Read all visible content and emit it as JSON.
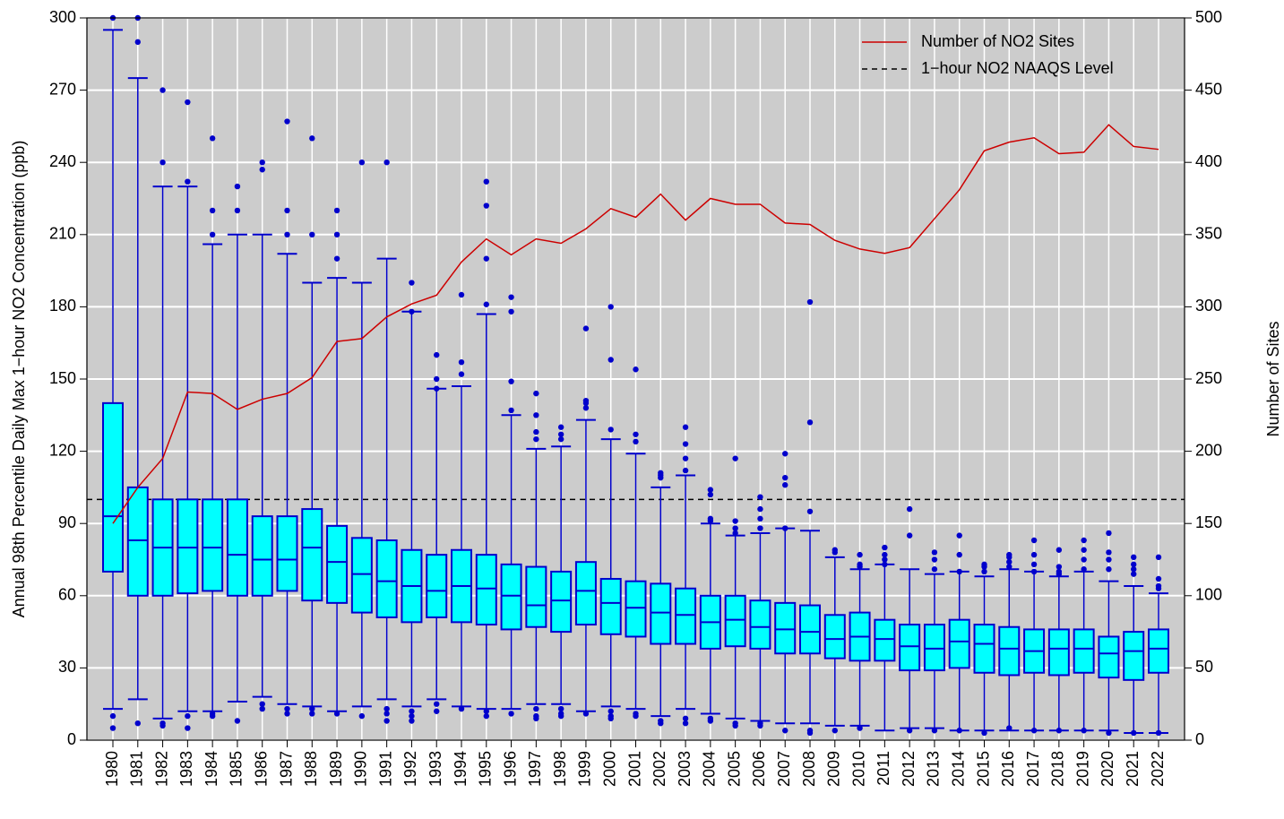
{
  "chart_data": {
    "type": "box",
    "y_label": "Annual 98th Percentile Daily Max 1−hour NO2 Concentration (ppb)",
    "y2_label": "Number of Sites",
    "categories": [
      "1980",
      "1981",
      "1982",
      "1983",
      "1984",
      "1985",
      "1986",
      "1987",
      "1988",
      "1989",
      "1990",
      "1991",
      "1992",
      "1993",
      "1994",
      "1995",
      "1996",
      "1997",
      "1998",
      "1999",
      "2000",
      "2001",
      "2002",
      "2003",
      "2004",
      "2005",
      "2006",
      "2007",
      "2008",
      "2009",
      "2010",
      "2011",
      "2012",
      "2013",
      "2014",
      "2015",
      "2016",
      "2017",
      "2018",
      "2019",
      "2020",
      "2021",
      "2022"
    ],
    "whisker_low": [
      13,
      17,
      9,
      12,
      12,
      16,
      18,
      15,
      14,
      12,
      14,
      17,
      14,
      17,
      14,
      13,
      13,
      15,
      15,
      12,
      14,
      13,
      10,
      13,
      11,
      9,
      8,
      7,
      7,
      6,
      6,
      4,
      5,
      5,
      4,
      4,
      4,
      4,
      4,
      4,
      4,
      3,
      3
    ],
    "q1": [
      70,
      60,
      60,
      61,
      62,
      60,
      60,
      62,
      58,
      57,
      53,
      51,
      49,
      51,
      49,
      48,
      46,
      47,
      45,
      48,
      44,
      43,
      40,
      40,
      38,
      39,
      38,
      36,
      36,
      34,
      33,
      33,
      29,
      29,
      30,
      28,
      27,
      28,
      27,
      28,
      26,
      25,
      28
    ],
    "median": [
      93,
      83,
      80,
      80,
      80,
      77,
      75,
      75,
      80,
      74,
      69,
      66,
      64,
      62,
      64,
      63,
      60,
      56,
      58,
      62,
      57,
      55,
      53,
      52,
      49,
      50,
      47,
      46,
      45,
      42,
      43,
      42,
      39,
      38,
      41,
      40,
      38,
      37,
      38,
      38,
      36,
      37,
      38
    ],
    "q3": [
      140,
      105,
      100,
      100,
      100,
      100,
      93,
      93,
      96,
      89,
      84,
      83,
      79,
      77,
      79,
      77,
      73,
      72,
      70,
      74,
      67,
      66,
      65,
      63,
      60,
      60,
      58,
      57,
      56,
      52,
      53,
      50,
      48,
      48,
      50,
      48,
      47,
      46,
      46,
      46,
      43,
      45,
      46
    ],
    "whisker_high": [
      295,
      275,
      230,
      230,
      206,
      210,
      210,
      202,
      190,
      192,
      190,
      200,
      178,
      146,
      147,
      177,
      135,
      121,
      122,
      133,
      125,
      119,
      105,
      110,
      90,
      85,
      86,
      88,
      87,
      76,
      71,
      73,
      71,
      69,
      70,
      68,
      71,
      70,
      68,
      70,
      66,
      64,
      61
    ],
    "outliers": [
      [
        300,
        10,
        5
      ],
      [
        300,
        290,
        7
      ],
      [
        270,
        240,
        7,
        6
      ],
      [
        265,
        232,
        10,
        5
      ],
      [
        250,
        220,
        210,
        11,
        10
      ],
      [
        230,
        220,
        8
      ],
      [
        240,
        237,
        15,
        13
      ],
      [
        257,
        220,
        210,
        13,
        11
      ],
      [
        250,
        210,
        13,
        11
      ],
      [
        220,
        210,
        200,
        11
      ],
      [
        240,
        10
      ],
      [
        240,
        13,
        11,
        8
      ],
      [
        190,
        178,
        12,
        10,
        8
      ],
      [
        160,
        150,
        146,
        15,
        12
      ],
      [
        185,
        157,
        152,
        13
      ],
      [
        232,
        222,
        200,
        181,
        12,
        10
      ],
      [
        184,
        178,
        149,
        137,
        11
      ],
      [
        144,
        135,
        128,
        125,
        13,
        10,
        9
      ],
      [
        130,
        127,
        125,
        13,
        11,
        10
      ],
      [
        171,
        141,
        140,
        138,
        11
      ],
      [
        180,
        158,
        129,
        12,
        10,
        9
      ],
      [
        154,
        127,
        124,
        11,
        10
      ],
      [
        111,
        110,
        109,
        8,
        7
      ],
      [
        130,
        123,
        117,
        112,
        9,
        7
      ],
      [
        104,
        102,
        92,
        91,
        9,
        8
      ],
      [
        117,
        91,
        88,
        86,
        7,
        6
      ],
      [
        101,
        96,
        92,
        88,
        7,
        6
      ],
      [
        119,
        109,
        106,
        88,
        4
      ],
      [
        182,
        132,
        95,
        4,
        3
      ],
      [
        79,
        78,
        4
      ],
      [
        77,
        73,
        72,
        5
      ],
      [
        80,
        77,
        75,
        73
      ],
      [
        96,
        85,
        4
      ],
      [
        78,
        75,
        71,
        4
      ],
      [
        85,
        77,
        70,
        4
      ],
      [
        73,
        72,
        70,
        3
      ],
      [
        77,
        76,
        74,
        72,
        5
      ],
      [
        83,
        77,
        73,
        70,
        4
      ],
      [
        79,
        72,
        70,
        69,
        4
      ],
      [
        83,
        79,
        75,
        71,
        4
      ],
      [
        86,
        78,
        75,
        71,
        3
      ],
      [
        76,
        73,
        71,
        69,
        3
      ],
      [
        76,
        67,
        64,
        63,
        3
      ]
    ],
    "box_color": "#00ffff",
    "whisker_color": "#0000cc",
    "line_series": {
      "name": "Number of NO2 Sites",
      "color": "#cc0000",
      "axis": "y2",
      "values": [
        150,
        175,
        195,
        241,
        240,
        229,
        236,
        240,
        251,
        276,
        278,
        293,
        302,
        308,
        331,
        347,
        336,
        347,
        344,
        354,
        368,
        362,
        378,
        360,
        375,
        371,
        371,
        358,
        357,
        346,
        340,
        337,
        341,
        361,
        381,
        408,
        414,
        417,
        406,
        407,
        426,
        411,
        409
      ]
    },
    "reference_line": {
      "name": "1−hour NO2 NAAQS Level",
      "value": 100,
      "color": "#000000"
    },
    "ylim": [
      0,
      300
    ],
    "yticks": [
      0,
      30,
      60,
      90,
      120,
      150,
      180,
      210,
      240,
      270,
      300
    ],
    "y2lim": [
      0,
      500
    ],
    "y2ticks": [
      0,
      50,
      100,
      150,
      200,
      250,
      300,
      350,
      400,
      450,
      500
    ],
    "grid": true,
    "legend": "top-right"
  }
}
